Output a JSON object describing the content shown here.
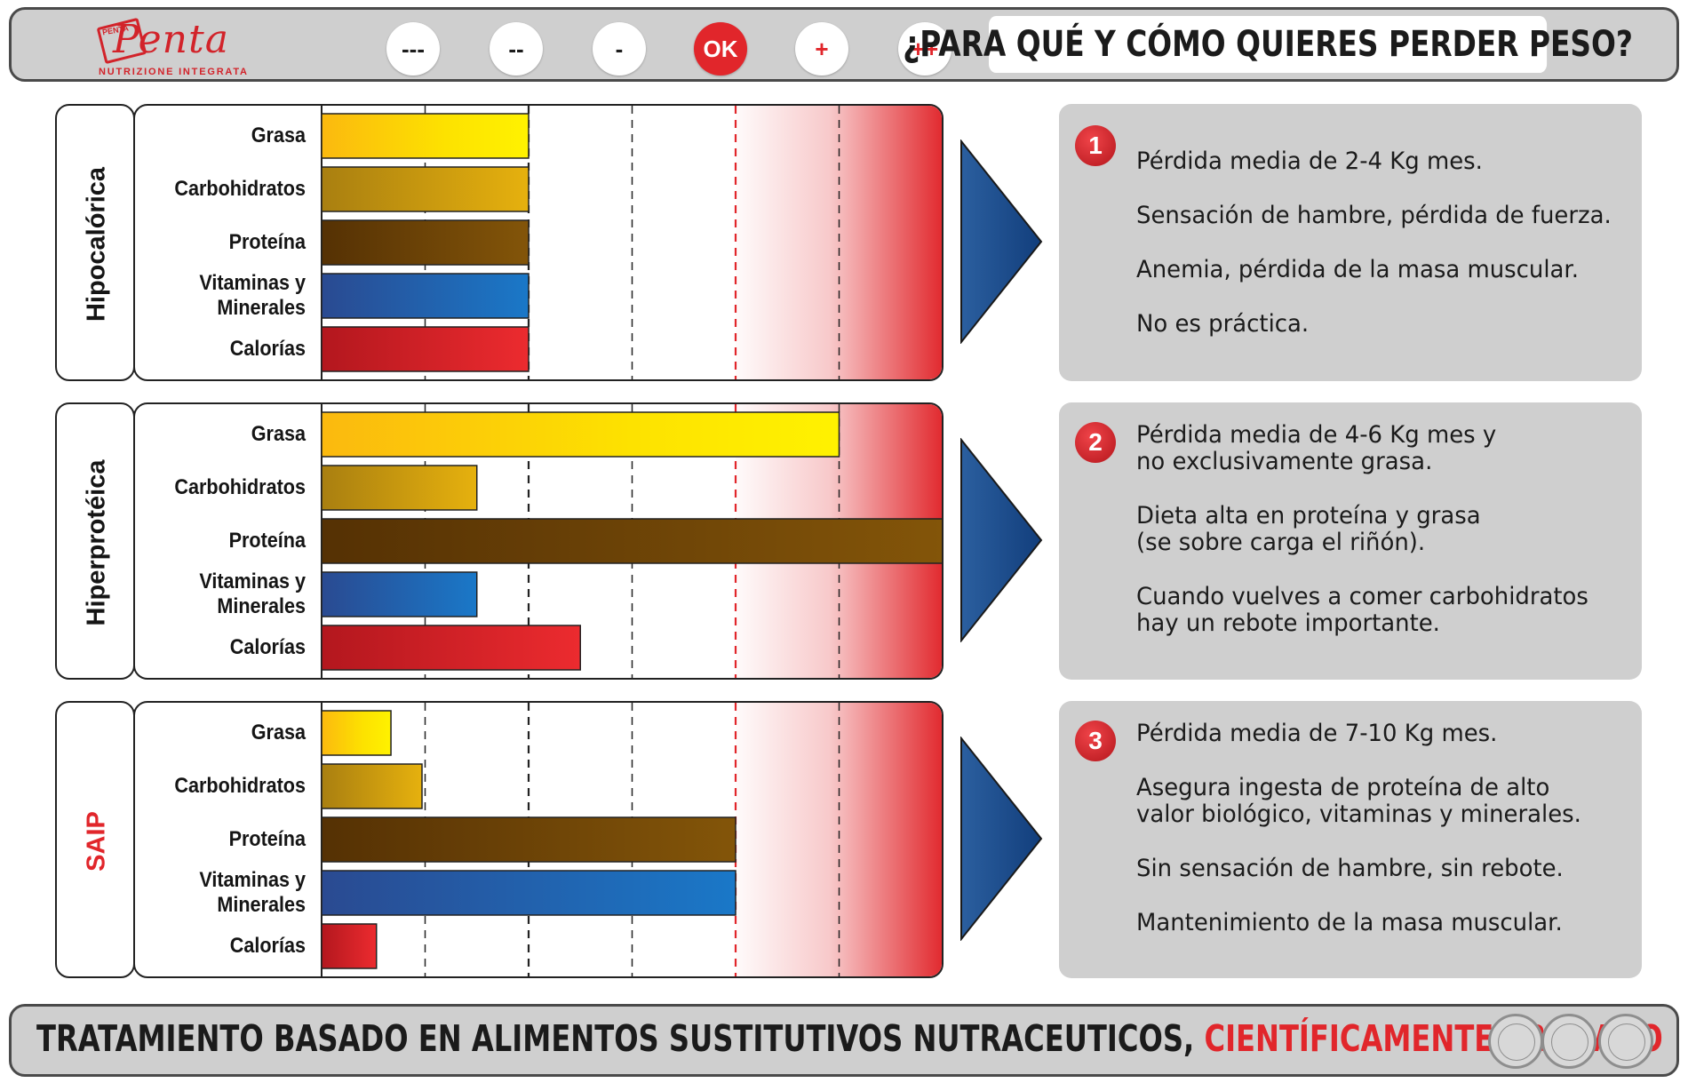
{
  "header": {
    "logo": {
      "pre": "PENTA",
      "name": "Penta",
      "tagline": "NUTRIZIONE INTEGRATA"
    },
    "scale": [
      {
        "label": "---",
        "style": "plain"
      },
      {
        "label": "--",
        "style": "plain"
      },
      {
        "label": "-",
        "style": "plain"
      },
      {
        "label": "OK",
        "style": "ok"
      },
      {
        "label": "+",
        "style": "red"
      },
      {
        "label": "++",
        "style": "red"
      }
    ],
    "question": "¿PARA QUÉ Y CÓMO QUIERES PERDER PESO?"
  },
  "colors": {
    "grasa": "#f5d20a",
    "carbohidratos": "#c99a10",
    "proteina": "#6b4206",
    "vitaminas": "#1f5aa6",
    "calorias": "#d7242b",
    "ok_line": "#e1262b",
    "excess_zone": "#e1262b",
    "arrow": "#1f4e8f"
  },
  "chart_data": [
    {
      "type": "bar",
      "diet": "Hipocalórica",
      "categories": [
        "Grasa",
        "Carbohidratos",
        "Proteína",
        "Vitaminas y\nMinerales",
        "Calorías"
      ],
      "values": [
        -2,
        -2,
        -2,
        -2,
        -2
      ],
      "scale": [
        "---",
        "--",
        "-",
        "OK",
        "+",
        "++"
      ],
      "xlim": [
        -4,
        2
      ],
      "grid": true,
      "orientation": "horizontal"
    },
    {
      "type": "bar",
      "diet": "Hiperprotéica",
      "categories": [
        "Grasa",
        "Carbohidratos",
        "Proteína",
        "Vitaminas y\nMinerales",
        "Calorías"
      ],
      "values": [
        1,
        -2.5,
        2,
        -2.5,
        -1.5
      ],
      "scale": [
        "---",
        "--",
        "-",
        "OK",
        "+",
        "++"
      ],
      "xlim": [
        -4,
        2
      ],
      "grid": true,
      "orientation": "horizontal"
    },
    {
      "type": "bar",
      "diet": "SAIP",
      "categories": [
        "Grasa",
        "Carbohidratos",
        "Proteína",
        "Vitaminas y\nMinerales",
        "Calorías"
      ],
      "values": [
        -3.33,
        -3.03,
        0,
        0,
        -3.47
      ],
      "scale": [
        "---",
        "--",
        "-",
        "OK",
        "+",
        "++"
      ],
      "xlim": [
        -4,
        2
      ],
      "grid": true,
      "orientation": "horizontal"
    }
  ],
  "descriptions": [
    {
      "number": "1",
      "lines": [
        "Pérdida media de 2-4 Kg mes.",
        "Sensación de hambre, pérdida de fuerza.",
        "Anemia, pérdida de la masa muscular.",
        "No es práctica."
      ]
    },
    {
      "number": "2",
      "lines": [
        "Pérdida media de 4-6 Kg mes y\nno exclusivamente grasa.",
        "Dieta alta en proteína y grasa\n(se sobre carga el riñón).",
        "Cuando vuelves a comer carbohidratos\nhay un rebote importante."
      ]
    },
    {
      "number": "3",
      "lines": [
        "Pérdida media de 7-10 Kg mes.",
        "Asegura ingesta de proteína de alto\nvalor biológico, vitaminas y minerales.",
        "Sin sensación de hambre, sin rebote.",
        "Mantenimiento de la masa muscular."
      ]
    }
  ],
  "footer": {
    "text": "TRATAMIENTO BASADO EN ALIMENTOS SUSTITUTIVOS NUTRACEUTICOS, ",
    "accent": "CIENTÍFICAMENTE PROBADO",
    "seals": [
      {
        "icon": "diamond-seal-icon"
      },
      {
        "icon": "dna-seal-icon"
      },
      {
        "icon": "caduceus-seal-icon"
      }
    ]
  }
}
